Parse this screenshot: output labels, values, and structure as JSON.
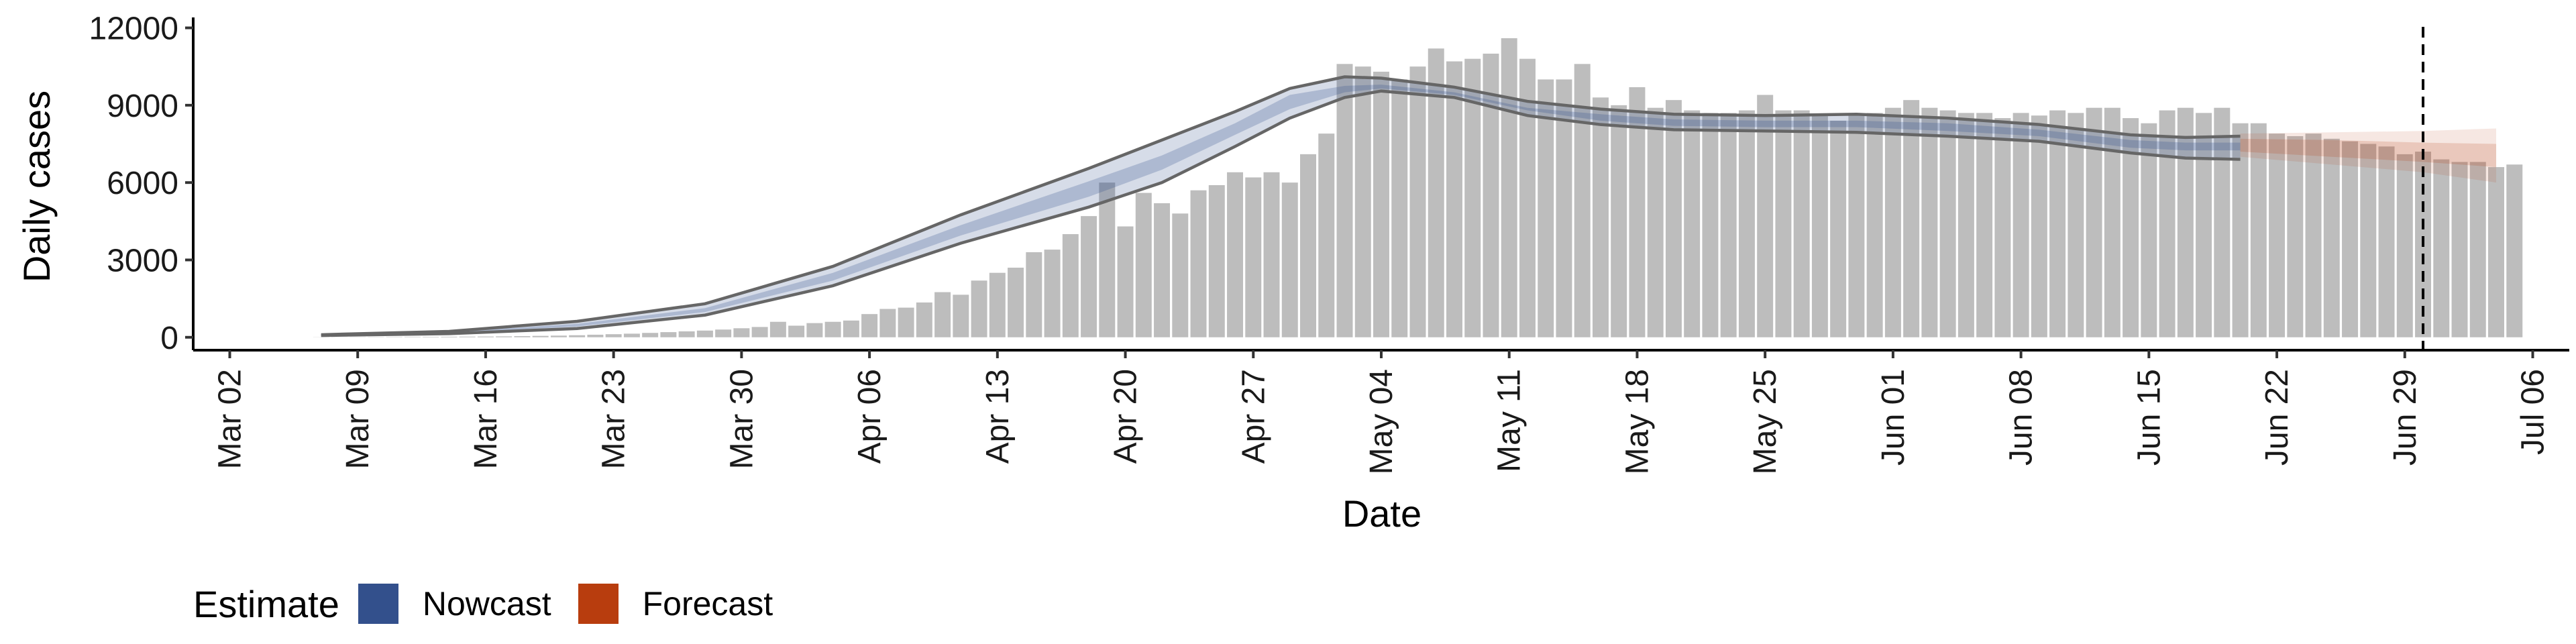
{
  "chart_data": {
    "type": "bar",
    "xlabel": "Date",
    "ylabel": "Daily cases",
    "ylim": [
      -500,
      12300
    ],
    "xlim": [
      "2020-02-29",
      "2020-07-08"
    ],
    "yticks": [
      0,
      3000,
      6000,
      9000,
      12000
    ],
    "yticklabels": [
      "0",
      "3000",
      "6000",
      "9000",
      "12000"
    ],
    "xticks": [
      "2020-03-02",
      "2020-03-09",
      "2020-03-16",
      "2020-03-23",
      "2020-03-30",
      "2020-04-06",
      "2020-04-13",
      "2020-04-20",
      "2020-04-27",
      "2020-05-04",
      "2020-05-11",
      "2020-05-18",
      "2020-05-25",
      "2020-06-01",
      "2020-06-08",
      "2020-06-15",
      "2020-06-22",
      "2020-06-29",
      "2020-07-06"
    ],
    "xticklabels": [
      "Mar 02",
      "Mar 09",
      "Mar 16",
      "Mar 23",
      "Mar 30",
      "Apr 06",
      "Apr 13",
      "Apr 20",
      "Apr 27",
      "May 04",
      "May 11",
      "May 18",
      "May 25",
      "Jun 01",
      "Jun 08",
      "Jun 15",
      "Jun 22",
      "Jun 29",
      "Jul 06"
    ],
    "vline": "2020-06-30",
    "bars": {
      "start": "2020-03-07",
      "values": [
        5,
        6,
        8,
        10,
        12,
        15,
        18,
        22,
        26,
        30,
        36,
        44,
        55,
        65,
        80,
        100,
        120,
        140,
        170,
        200,
        230,
        260,
        300,
        350,
        400,
        600,
        450,
        550,
        600,
        650,
        900,
        1100,
        1150,
        1350,
        1750,
        1650,
        2200,
        2500,
        2700,
        3300,
        3400,
        4000,
        4700,
        6000,
        4300,
        5600,
        5200,
        4800,
        5700,
        5900,
        6400,
        6200,
        6400,
        6000,
        7100,
        7900,
        10600,
        10500,
        10300,
        10000,
        10500,
        11200,
        10700,
        10800,
        11000,
        11600,
        10800,
        10000,
        10000,
        10600,
        9300,
        9000,
        9700,
        8900,
        9200,
        8800,
        8700,
        8700,
        8800,
        9400,
        8800,
        8800,
        8600,
        8400,
        8600,
        8700,
        8900,
        9200,
        8900,
        8800,
        8700,
        8700,
        8500,
        8700,
        8600,
        8800,
        8700,
        8900,
        8900,
        8500,
        8300,
        8800,
        8900,
        8700,
        8900,
        8300,
        8300,
        7900,
        7800,
        7900,
        7700,
        7600,
        7500,
        7400,
        7100,
        7200,
        6900,
        6800,
        6800,
        6600,
        6700
      ],
      "color": "#bdbdbd"
    },
    "series": [
      {
        "name": "Nowcast",
        "color": "#33508c",
        "x": [
          "2020-03-07",
          "2020-03-14",
          "2020-03-21",
          "2020-03-28",
          "2020-04-04",
          "2020-04-11",
          "2020-04-18",
          "2020-04-22",
          "2020-04-26",
          "2020-04-29",
          "2020-05-02",
          "2020-05-04",
          "2020-05-08",
          "2020-05-12",
          "2020-05-16",
          "2020-05-20",
          "2020-05-25",
          "2020-05-30",
          "2020-06-04",
          "2020-06-09",
          "2020-06-14",
          "2020-06-17",
          "2020-06-20"
        ],
        "upper": [
          100,
          230,
          620,
          1300,
          2750,
          4750,
          6550,
          7650,
          8750,
          9650,
          10100,
          10050,
          9700,
          9150,
          8850,
          8650,
          8600,
          8650,
          8500,
          8250,
          7850,
          7750,
          7800
        ],
        "lower": [
          70,
          140,
          340,
          860,
          2000,
          3650,
          5050,
          6000,
          7400,
          8500,
          9300,
          9550,
          9300,
          8600,
          8250,
          8050,
          8000,
          7950,
          7800,
          7600,
          7150,
          6950,
          6900
        ],
        "band_upper": [
          90,
          200,
          520,
          1130,
          2500,
          4350,
          6050,
          7050,
          8300,
          9400,
          9750,
          9800,
          9500,
          8900,
          8650,
          8450,
          8400,
          8400,
          8300,
          8050,
          7650,
          7550,
          7550
        ],
        "band_lower": [
          80,
          160,
          420,
          980,
          2200,
          3950,
          5450,
          6500,
          7850,
          8850,
          9500,
          9650,
          9400,
          8800,
          8400,
          8200,
          8150,
          8150,
          8000,
          7800,
          7350,
          7250,
          7250
        ]
      },
      {
        "name": "Forecast",
        "color": "#b83d0e",
        "x": [
          "2020-06-20",
          "2020-06-25",
          "2020-06-30",
          "2020-07-04"
        ],
        "outer_upper": [
          7900,
          7950,
          8000,
          8100
        ],
        "outer_lower": [
          7000,
          6700,
          6400,
          6000
        ],
        "inner_upper": [
          7700,
          7650,
          7550,
          7500
        ],
        "inner_lower": [
          7200,
          7000,
          6800,
          6600
        ]
      }
    ],
    "legend": {
      "title": "Estimate",
      "position": "bottom-left",
      "items": [
        {
          "label": "Nowcast",
          "color": "#33508c"
        },
        {
          "label": "Forecast",
          "color": "#b83d0e"
        }
      ]
    }
  }
}
